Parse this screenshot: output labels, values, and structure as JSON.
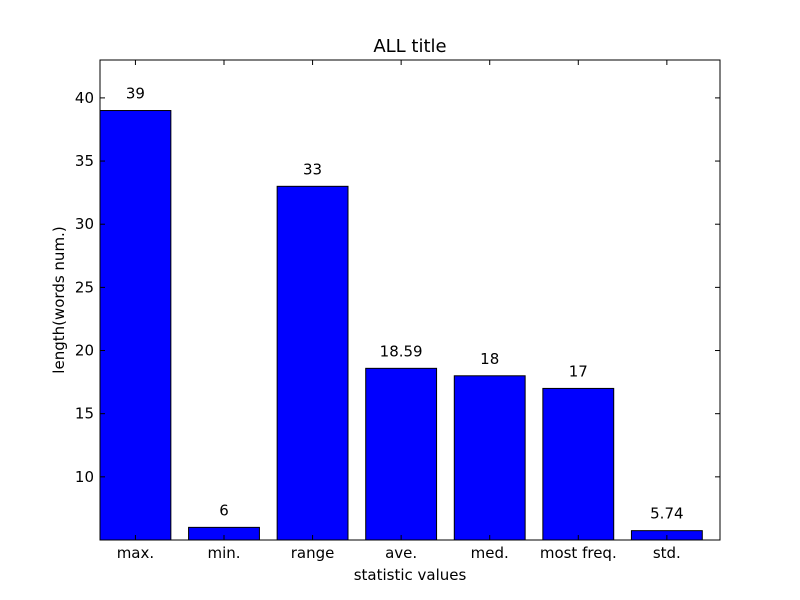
{
  "chart_data": {
    "type": "bar",
    "title": "ALL title",
    "xlabel": "statistic values",
    "ylabel": "length(words num.)",
    "categories": [
      "max.",
      "min.",
      "range",
      "ave.",
      "med.",
      "most freq.",
      "std."
    ],
    "values": [
      39,
      6,
      33,
      18.59,
      18,
      17,
      5.74
    ],
    "value_labels": [
      "39",
      "6",
      "33",
      "18.59",
      "18",
      "17",
      "5.74"
    ],
    "ylim": [
      5,
      43
    ],
    "yticks": [
      10,
      15,
      20,
      25,
      30,
      35,
      40
    ],
    "bar_color": "#0000ff",
    "grid": false
  }
}
